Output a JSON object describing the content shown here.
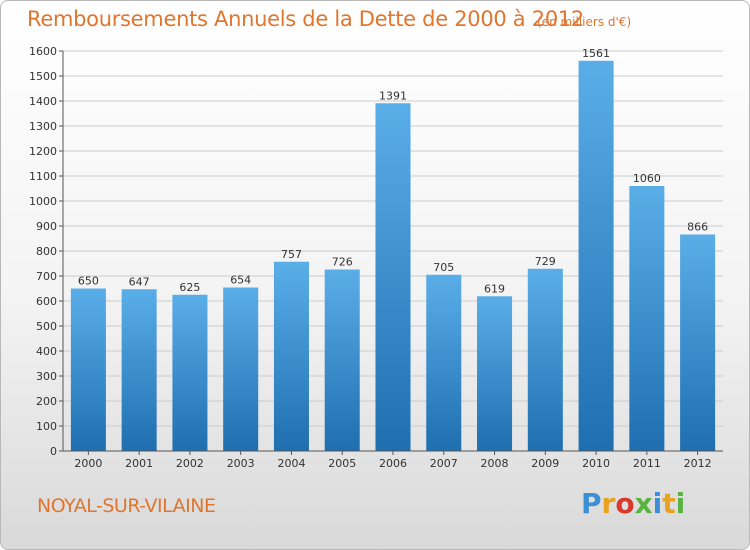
{
  "chart_data": {
    "type": "bar",
    "title": "Remboursements Annuels de la Dette de 2000 à 2012",
    "unit_label": "(en milliers d'€)",
    "categories": [
      "2000",
      "2001",
      "2002",
      "2003",
      "2004",
      "2005",
      "2006",
      "2007",
      "2008",
      "2009",
      "2010",
      "2011",
      "2012"
    ],
    "values": [
      650,
      647,
      625,
      654,
      757,
      726,
      1391,
      705,
      619,
      729,
      1561,
      1060,
      866
    ],
    "value_labels": [
      "650",
      "647",
      "625",
      "654",
      "757",
      "726",
      "1391",
      "705",
      "619",
      "729",
      "1561",
      "1060",
      "866"
    ],
    "ylim": [
      0,
      1600
    ],
    "yticks": [
      0,
      100,
      200,
      300,
      400,
      500,
      600,
      700,
      800,
      900,
      1000,
      1100,
      1200,
      1300,
      1400,
      1500,
      1600
    ],
    "grid": true,
    "bar_color_top": "#5aaee8",
    "bar_color_bottom": "#1f6fb0",
    "title_color": "#e0762e"
  },
  "footer": {
    "city": "NOYAL-SUR-VILAINE",
    "logo": {
      "p": "P",
      "r": "r",
      "o": "o",
      "x": "x",
      "i1": "i",
      "t": "t",
      "i2": "i"
    }
  }
}
